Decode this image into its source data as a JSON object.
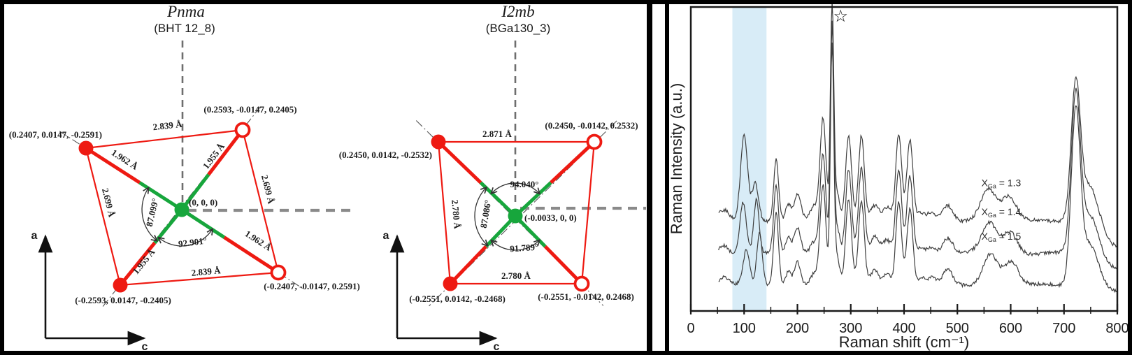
{
  "colors": {
    "red": "#ee1a12",
    "green": "#17a63c",
    "band": "#d8ecf7",
    "curve": "#3f3f3f",
    "frame": "#000000"
  },
  "pnma": {
    "title": "Pnma",
    "subtitle": "(BHT 12_8)",
    "corner_tl": "(0.2407, 0.0147, -0.2591)",
    "corner_tr": "(0.2593, -0.0147, 0.2405)",
    "corner_bl": "(-0.2593, 0.0147, -0.2405)",
    "corner_br": "(-0.2407, -0.0147, 0.2591)",
    "center": "(0, 0, 0)",
    "len_top": "2.839 Å",
    "len_bottom": "2.839 Å",
    "len_left": "2.699 Å",
    "len_right": "2.699 Å",
    "bond_tl": "1.962 Å",
    "bond_tr": "1.955 Å",
    "bond_bl": "1.955 Å",
    "bond_br": "1.962 Å",
    "angle_left": "87.099°",
    "angle_bottom": "92.901°",
    "axis_v": "a",
    "axis_h": "c"
  },
  "i2mb": {
    "title": "I2mb",
    "subtitle": "(BGa130_3)",
    "corner_tl": "(0.2450, 0.0142, -0.2532)",
    "corner_tr": "(0.2450, -0.0142, 0.2532)",
    "corner_bl": "(-0.2551, 0.0142, -0.2468)",
    "corner_br": "(-0.2551, -0.0142, 0.2468)",
    "center": "(-0.0033, 0, 0)",
    "len_top": "2.871 Å",
    "len_left": "2.780 Å",
    "len_bottom": "2.780 Å",
    "angle_top": "94.040°",
    "angle_left": "87.086°",
    "angle_bottom": "91.789°",
    "axis_v": "a",
    "axis_h": "c"
  },
  "chart_data": {
    "type": "line",
    "xlabel": "Raman shift (cm⁻¹)",
    "ylabel": "Raman Intensity  (a.u.)",
    "xlim": [
      0,
      800
    ],
    "xtick_step": 100,
    "minor_tick_step": 50,
    "xticks": [
      0,
      100,
      200,
      300,
      400,
      500,
      600,
      700,
      800
    ],
    "x_range_plotted": [
      52,
      800
    ],
    "grid": false,
    "highlight_band": {
      "x0": 78,
      "x1": 142,
      "color": "#d8ecf7"
    },
    "star": {
      "symbol": "☆",
      "x": 281,
      "y": 0.952,
      "marks_peak_at": 265
    },
    "peak_format": "[center_cm-1, height_fraction_of_plot_height, sigma_cm-1]",
    "noise_amp": 0.006,
    "series": [
      {
        "label": {
          "pre": "X",
          "sub": "Ga",
          "post": " = 1.3"
        },
        "baseline": 0.3,
        "label_pos": [
          545,
          0.41
        ],
        "peaks": [
          [
            62,
            0.03,
            9
          ],
          [
            100,
            0.285,
            6.5
          ],
          [
            121,
            0.125,
            6
          ],
          [
            160,
            0.2,
            4.5
          ],
          [
            183,
            0.05,
            5
          ],
          [
            200,
            0.085,
            6
          ],
          [
            231,
            0.04,
            7
          ],
          [
            248,
            0.33,
            5.5
          ],
          [
            265,
            0.695,
            3.2
          ],
          [
            274,
            0.09,
            5
          ],
          [
            296,
            0.28,
            5.5
          ],
          [
            320,
            0.28,
            5.5
          ],
          [
            345,
            0.05,
            8
          ],
          [
            368,
            0.04,
            7
          ],
          [
            390,
            0.28,
            5.5
          ],
          [
            411,
            0.26,
            5.5
          ],
          [
            432,
            0.02,
            7
          ],
          [
            452,
            0.022,
            8
          ],
          [
            482,
            0.05,
            9
          ],
          [
            558,
            0.1,
            14
          ],
          [
            597,
            0.072,
            13
          ],
          [
            722,
            0.44,
            8.5
          ],
          [
            748,
            0.12,
            16
          ],
          [
            800,
            -0.09,
            26
          ]
        ]
      },
      {
        "label": {
          "pre": "X",
          "sub": "Ga",
          "post": " = 1.4"
        },
        "baseline": 0.19,
        "label_pos": [
          545,
          0.315
        ],
        "peaks": [
          [
            62,
            0.028,
            9
          ],
          [
            98,
            0.17,
            6
          ],
          [
            123,
            0.175,
            5
          ],
          [
            160,
            0.22,
            4.5
          ],
          [
            183,
            0.05,
            5
          ],
          [
            200,
            0.082,
            6
          ],
          [
            231,
            0.04,
            7
          ],
          [
            248,
            0.33,
            5.5
          ],
          [
            265,
            0.745,
            3.2
          ],
          [
            274,
            0.09,
            5
          ],
          [
            296,
            0.278,
            5.5
          ],
          [
            320,
            0.276,
            5.5
          ],
          [
            345,
            0.05,
            8
          ],
          [
            368,
            0.04,
            7
          ],
          [
            390,
            0.276,
            5.5
          ],
          [
            411,
            0.256,
            5.5
          ],
          [
            432,
            0.02,
            7
          ],
          [
            452,
            0.022,
            8
          ],
          [
            482,
            0.05,
            9
          ],
          [
            560,
            0.1,
            14
          ],
          [
            599,
            0.072,
            13
          ],
          [
            722,
            0.5,
            8.5
          ],
          [
            748,
            0.13,
            16
          ],
          [
            800,
            -0.045,
            26
          ]
        ]
      },
      {
        "label": {
          "pre": "X",
          "sub": "Ga",
          "post": " = 1.5"
        },
        "baseline": 0.085,
        "label_pos": [
          545,
          0.235
        ],
        "peaks": [
          [
            62,
            0.025,
            9
          ],
          [
            104,
            0.11,
            6
          ],
          [
            129,
            0.17,
            5
          ],
          [
            160,
            0.24,
            4.5
          ],
          [
            183,
            0.048,
            5
          ],
          [
            200,
            0.08,
            6
          ],
          [
            231,
            0.038,
            7
          ],
          [
            248,
            0.328,
            5.5
          ],
          [
            265,
            0.775,
            3.2
          ],
          [
            274,
            0.09,
            5
          ],
          [
            296,
            0.276,
            5.5
          ],
          [
            320,
            0.274,
            5.5
          ],
          [
            345,
            0.05,
            8
          ],
          [
            368,
            0.04,
            7
          ],
          [
            390,
            0.274,
            5.5
          ],
          [
            411,
            0.254,
            5.5
          ],
          [
            432,
            0.02,
            7
          ],
          [
            452,
            0.022,
            8
          ],
          [
            482,
            0.05,
            9
          ],
          [
            562,
            0.105,
            14
          ],
          [
            601,
            0.075,
            13
          ],
          [
            722,
            0.555,
            8.5
          ],
          [
            748,
            0.14,
            16
          ],
          [
            800,
            -0.02,
            26
          ]
        ]
      }
    ]
  }
}
